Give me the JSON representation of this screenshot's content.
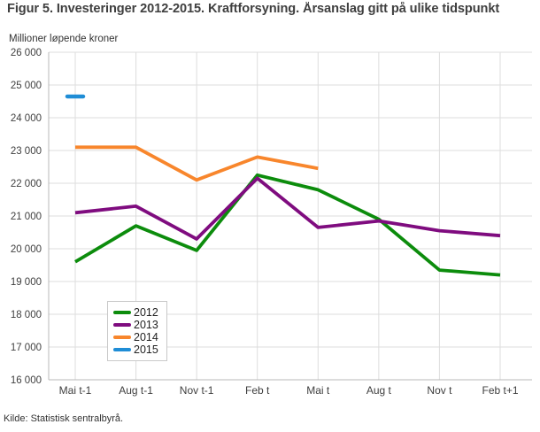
{
  "source": "Kilde: Statistisk sentralbyrå.",
  "chart_data": {
    "type": "line",
    "title": "Figur 5. Investeringer 2012-2015. Kraftforsyning. Årsanslag gitt på ulike tidspunkt",
    "subtitle": "Millioner løpende kroner",
    "ylabel": "Millioner løpende kroner",
    "xlabel": "",
    "categories": [
      "Mai t-1",
      "Aug t-1",
      "Nov t-1",
      "Feb t",
      "Mai t",
      "Aug t",
      "Nov t",
      "Feb t+1"
    ],
    "series": [
      {
        "name": "2012",
        "color": "#0c8c0c",
        "values": [
          19600,
          20700,
          19950,
          22250,
          21800,
          20900,
          19350,
          19200
        ]
      },
      {
        "name": "2013",
        "color": "#7f0c7f",
        "values": [
          21100,
          21300,
          20300,
          22150,
          20650,
          20850,
          20550,
          20400
        ]
      },
      {
        "name": "2014",
        "color": "#f8862c",
        "values": [
          23100,
          23100,
          22100,
          22800,
          22450,
          null,
          null,
          null
        ]
      },
      {
        "name": "2015",
        "color": "#1f8dd6",
        "values": [
          24650,
          null,
          null,
          null,
          null,
          null,
          null,
          null
        ]
      }
    ],
    "ylim": [
      16000,
      26000
    ],
    "ytick_step": 1000,
    "grid": true,
    "legend_position": "inside-bottom-left",
    "colors": {
      "grid_line": "#dddddd",
      "axis_line": "#b8b8b8",
      "tick_label": "#404040"
    }
  }
}
